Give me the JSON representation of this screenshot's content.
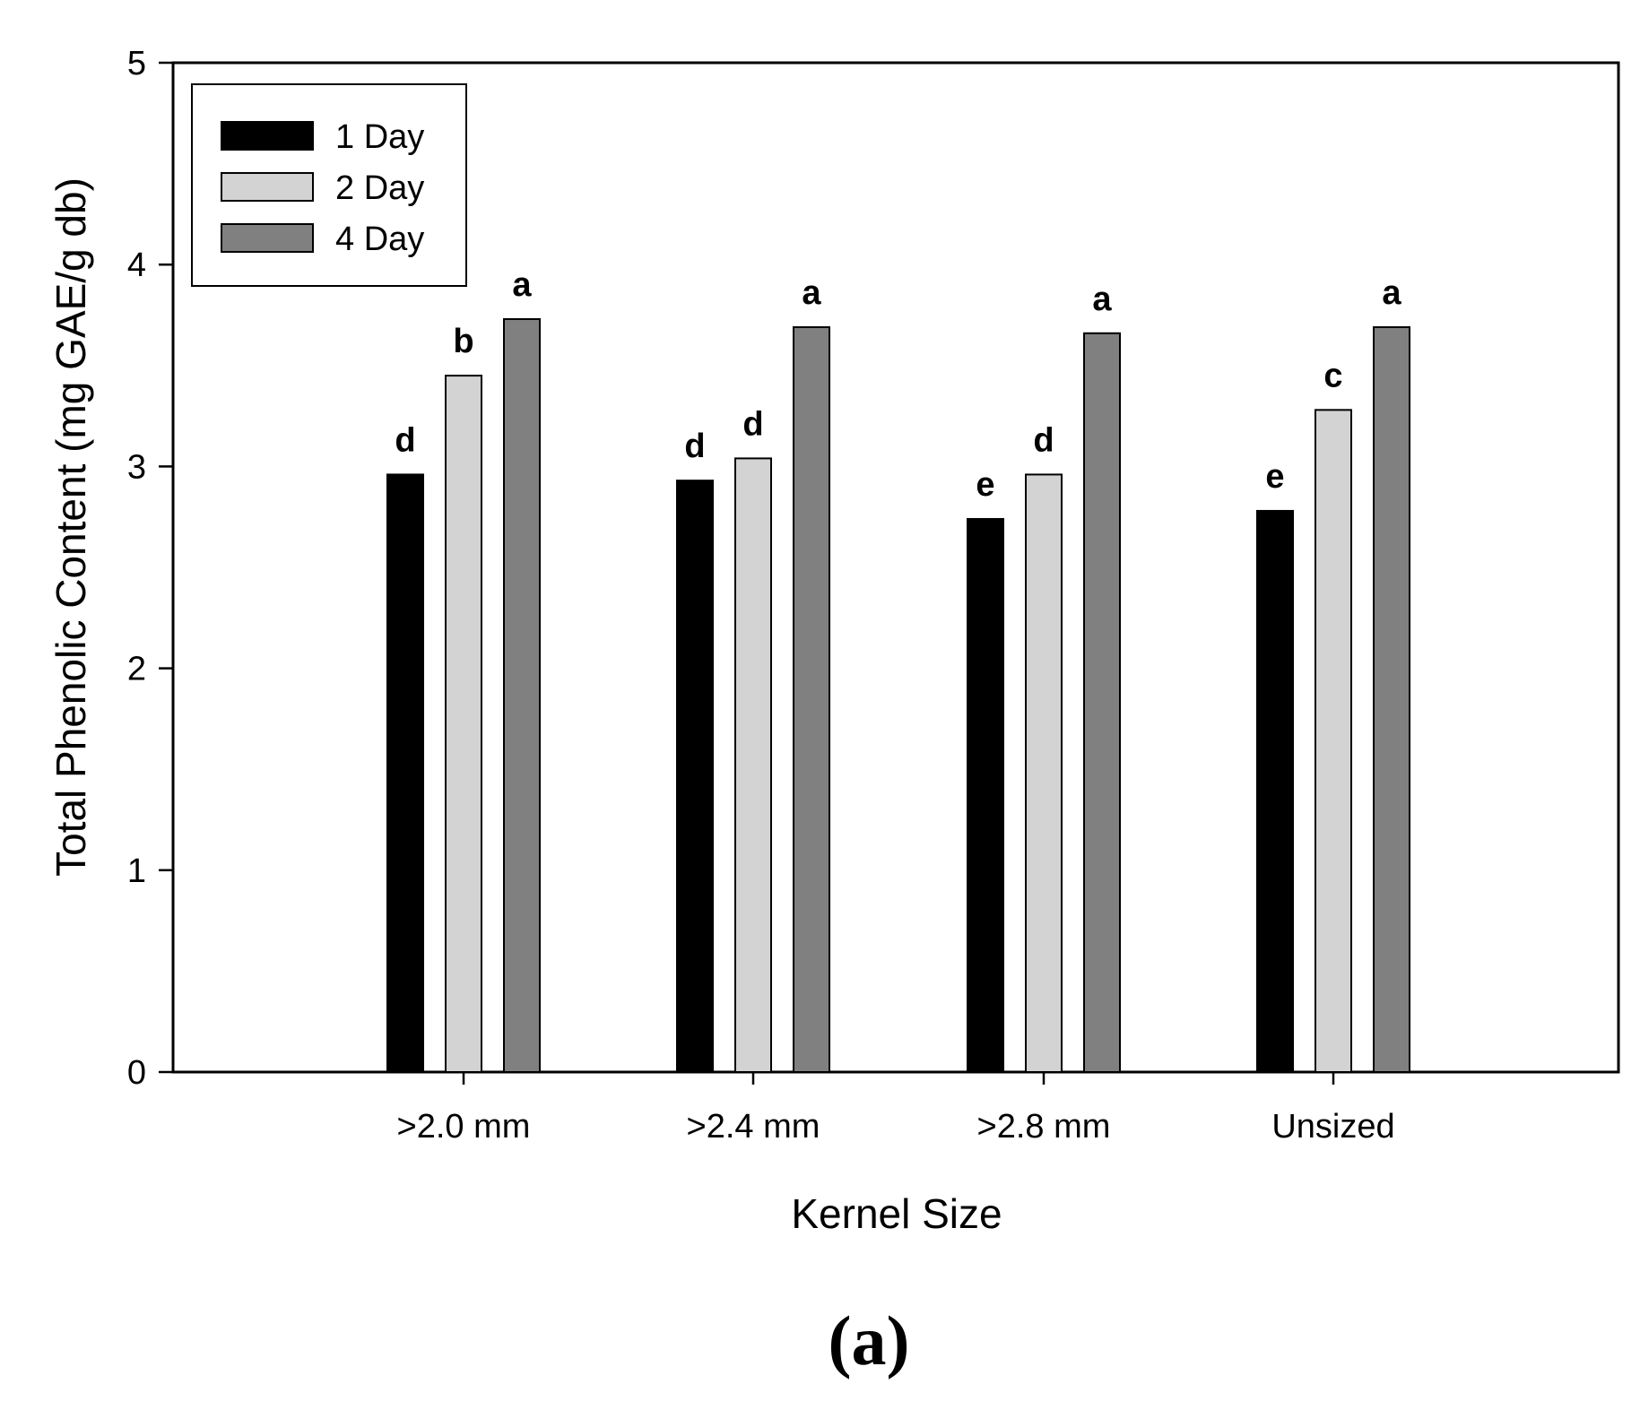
{
  "chart_data": {
    "type": "bar",
    "title": "",
    "xlabel": "Kernel Size",
    "ylabel": "Total Phenolic Content (mg GAE/g db)",
    "ylim": [
      0,
      5
    ],
    "yticks": [
      "0",
      "1",
      "2",
      "3",
      "4",
      "5"
    ],
    "grid": false,
    "legend_position": "top-left",
    "categories": [
      ">2.0 mm",
      ">2.4 mm",
      ">2.8 mm",
      "Unsized"
    ],
    "series": [
      {
        "name": "1 Day",
        "color": "#000000",
        "values": [
          2.96,
          2.93,
          2.74,
          2.78
        ],
        "labels": [
          "d",
          "d",
          "e",
          "e"
        ]
      },
      {
        "name": "2 Day",
        "color": "#d3d3d3",
        "values": [
          3.45,
          3.04,
          2.96,
          3.28
        ],
        "labels": [
          "b",
          "d",
          "d",
          "c"
        ]
      },
      {
        "name": "4 Day",
        "color": "#808080",
        "values": [
          3.73,
          3.69,
          3.66,
          3.69
        ],
        "labels": [
          "a",
          "a",
          "a",
          "a"
        ]
      }
    ],
    "caption": "(a)"
  }
}
